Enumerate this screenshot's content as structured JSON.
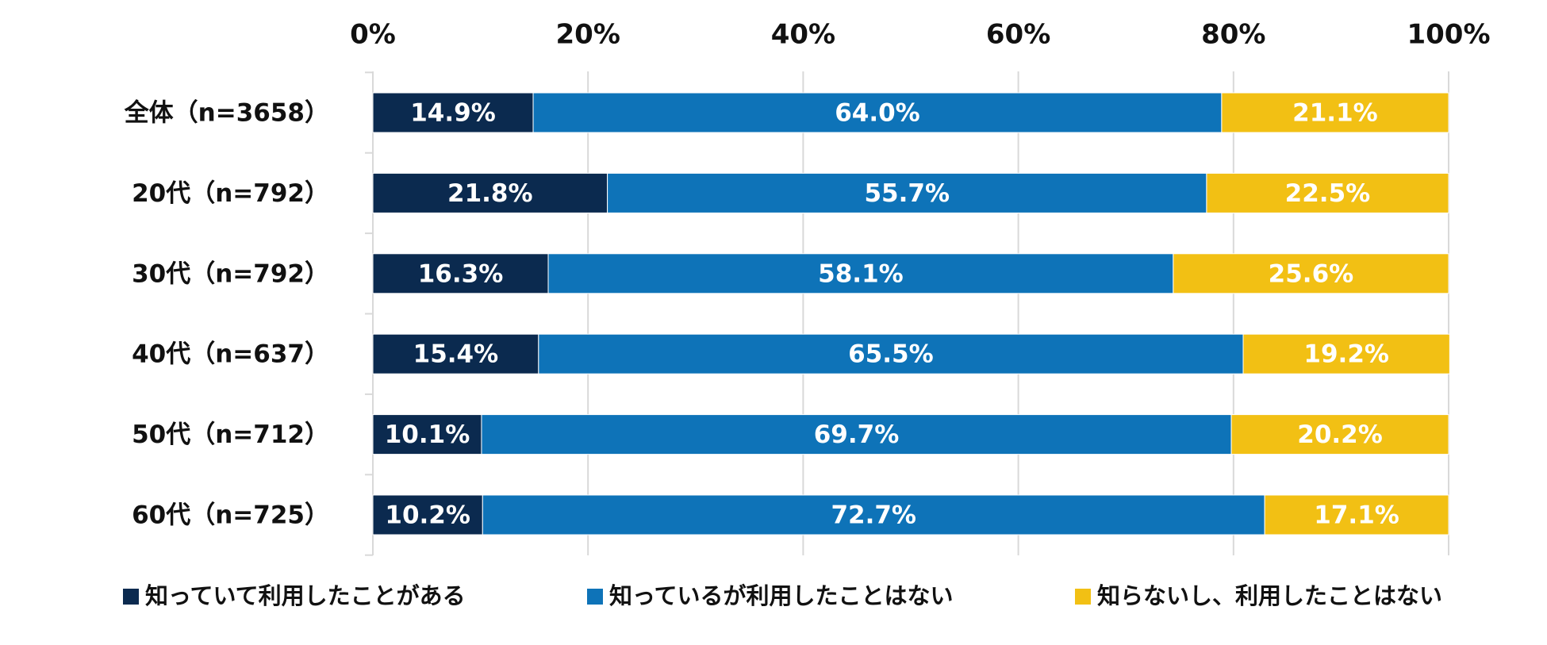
{
  "chart_data": {
    "type": "bar",
    "orientation": "horizontal",
    "stacked": "percent",
    "title": "",
    "xlabel": "",
    "ylabel": "",
    "xlim": [
      0,
      100
    ],
    "x_ticks": [
      "0%",
      "20%",
      "40%",
      "60%",
      "80%",
      "100%"
    ],
    "x_tick_values": [
      0,
      20,
      40,
      60,
      80,
      100
    ],
    "x_axis_position": "top",
    "grid": true,
    "legend_position": "bottom",
    "categories": [
      "全体（n=3658）",
      "20代（n=792）",
      "30代（n=792）",
      "40代（n=637）",
      "50代（n=712）",
      "60代（n=725）"
    ],
    "series": [
      {
        "name": "知っていて利用したことがある",
        "color": "#0b2a4f",
        "values": [
          14.9,
          21.8,
          16.3,
          15.4,
          10.1,
          10.2
        ],
        "labels": [
          "14.9%",
          "21.8%",
          "16.3%",
          "15.4%",
          "10.1%",
          "10.2%"
        ]
      },
      {
        "name": "知っているが利用したことはない",
        "color": "#0e73b8",
        "values": [
          64.0,
          55.7,
          58.1,
          65.5,
          69.7,
          72.7
        ],
        "labels": [
          "64.0%",
          "55.7%",
          "58.1%",
          "65.5%",
          "69.7%",
          "72.7%"
        ]
      },
      {
        "name": "知らないし、利用したことはない",
        "color": "#f2c014",
        "values": [
          21.1,
          22.5,
          25.6,
          19.2,
          20.2,
          17.1
        ],
        "labels": [
          "21.1%",
          "22.5%",
          "25.6%",
          "19.2%",
          "20.2%",
          "17.1%"
        ]
      }
    ]
  }
}
